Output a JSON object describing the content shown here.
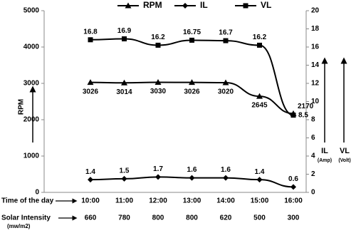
{
  "chart_data": {
    "type": "line",
    "categories": [
      "10:00",
      "11:00",
      "12:00",
      "13:00",
      "14:00",
      "15:00",
      "16:00"
    ],
    "series": [
      {
        "name": "RPM",
        "color": "#000000",
        "marker": "triangle",
        "values": [
          3026,
          3014,
          3030,
          3026,
          3020,
          2645,
          2170
        ]
      },
      {
        "name": "IL",
        "color": "#000000",
        "marker": "diamond",
        "axis": "y2",
        "values": [
          1.4,
          1.5,
          1.7,
          1.6,
          1.6,
          1.4,
          0.6
        ]
      },
      {
        "name": "VL",
        "color": "#000000",
        "marker": "square",
        "axis": "y2",
        "values": [
          16.8,
          16.9,
          16.2,
          16.75,
          16.7,
          16.2,
          8.5
        ]
      }
    ],
    "ylabel": "RPM",
    "ylim": [
      0,
      5000
    ],
    "yticks": [
      0,
      1000,
      2000,
      3000,
      4000,
      5000
    ],
    "y2lim": [
      0,
      20
    ],
    "y2ticks": [
      0,
      2,
      4,
      6,
      8,
      10,
      12,
      14,
      16,
      18,
      20
    ],
    "y2_labels": [
      {
        "name": "IL",
        "unit": "(Amp)"
      },
      {
        "name": "VL",
        "unit": "(Volt)"
      }
    ],
    "time_label": "Time of the day",
    "solar_label": "Solar Intensity",
    "solar_unit": "(mw/m2)",
    "solar_intensity": [
      660,
      780,
      800,
      800,
      620,
      500,
      300
    ]
  }
}
